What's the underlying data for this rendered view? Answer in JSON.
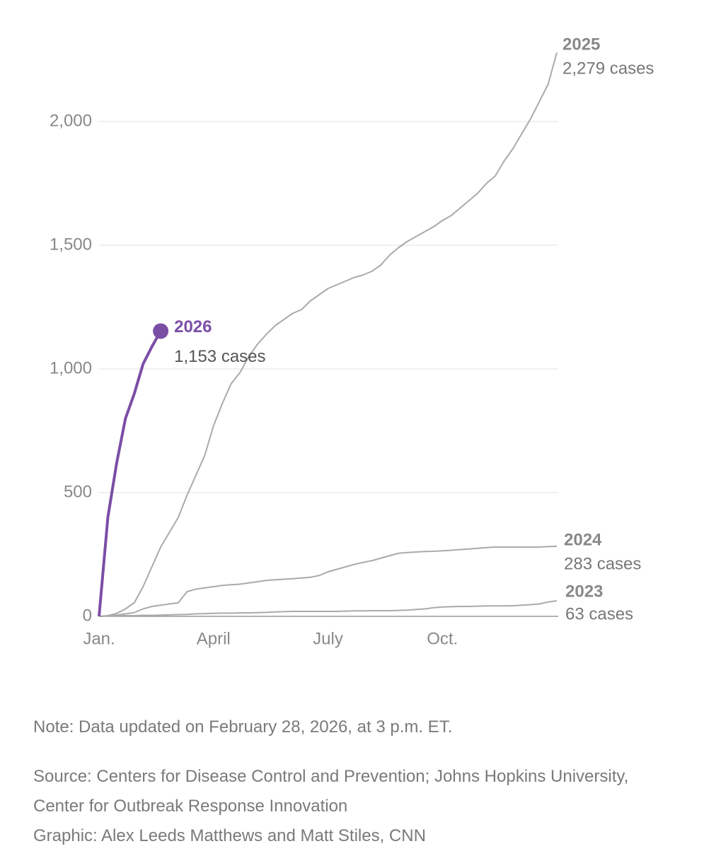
{
  "chart_data": {
    "type": "line",
    "x": [
      0,
      1,
      2,
      3,
      4,
      5,
      6,
      7,
      8,
      9,
      10,
      11,
      12,
      13,
      14,
      15,
      16,
      17,
      18,
      19,
      20,
      21,
      22,
      23,
      24,
      25,
      26,
      27,
      28,
      29,
      30,
      31,
      32,
      33,
      34,
      35,
      36,
      37,
      38,
      39,
      40,
      41,
      42,
      43,
      44,
      45,
      46,
      47,
      48,
      49,
      50,
      51,
      52
    ],
    "xlim": [
      0,
      52
    ],
    "xticks": [
      {
        "value": 0,
        "label": "Jan."
      },
      {
        "value": 13,
        "label": "April"
      },
      {
        "value": 26,
        "label": "July"
      },
      {
        "value": 39,
        "label": "Oct."
      }
    ],
    "ylim": [
      0,
      2300
    ],
    "yticks": [
      0,
      500,
      {
        "value": 1000,
        "label": "1,000"
      },
      {
        "value": 1500,
        "label": "1,500"
      },
      {
        "value": 2000,
        "label": "2,000"
      }
    ],
    "grid": true,
    "series": [
      {
        "name": "2023",
        "label": "63 cases",
        "color": "#aaaaaa",
        "values": [
          0,
          1,
          2,
          3,
          3,
          4,
          4,
          5,
          6,
          7,
          8,
          10,
          11,
          12,
          13,
          13,
          14,
          14,
          15,
          16,
          18,
          19,
          20,
          20,
          20,
          20,
          20,
          20,
          21,
          22,
          22,
          23,
          23,
          23,
          24,
          25,
          28,
          30,
          35,
          38,
          39,
          40,
          40,
          41,
          42,
          42,
          42,
          43,
          45,
          47,
          50,
          58,
          63
        ]
      },
      {
        "name": "2024",
        "label": "283 cases",
        "color": "#aaaaaa",
        "values": [
          0,
          2,
          5,
          10,
          15,
          30,
          40,
          45,
          50,
          55,
          100,
          110,
          115,
          120,
          125,
          128,
          130,
          135,
          140,
          145,
          148,
          150,
          152,
          155,
          158,
          165,
          180,
          190,
          200,
          210,
          218,
          225,
          235,
          245,
          255,
          258,
          260,
          262,
          263,
          265,
          267,
          270,
          272,
          275,
          278,
          280,
          280,
          280,
          280,
          280,
          280,
          282,
          283
        ]
      },
      {
        "name": "2025",
        "label": "2,279 cases",
        "color": "#aaaaaa",
        "values": [
          0,
          3,
          12,
          30,
          55,
          120,
          200,
          280,
          340,
          400,
          490,
          570,
          650,
          770,
          860,
          940,
          985,
          1050,
          1100,
          1140,
          1175,
          1200,
          1225,
          1240,
          1275,
          1300,
          1325,
          1340,
          1355,
          1370,
          1380,
          1395,
          1420,
          1460,
          1490,
          1515,
          1535,
          1555,
          1575,
          1600,
          1620,
          1650,
          1680,
          1710,
          1750,
          1780,
          1840,
          1890,
          1950,
          2010,
          2080,
          2150,
          2279
        ]
      },
      {
        "name": "2026",
        "label": "1,153 cases",
        "color": "#7b4ea6",
        "values": [
          0,
          400,
          620,
          800,
          900,
          1020,
          1090,
          1153,
          null,
          null,
          null,
          null,
          null,
          null,
          null,
          null,
          null,
          null,
          null,
          null,
          null,
          null,
          null,
          null,
          null,
          null,
          null,
          null,
          null,
          null,
          null,
          null,
          null,
          null,
          null,
          null,
          null,
          null,
          null,
          null,
          null,
          null,
          null,
          null,
          null,
          null,
          null,
          null,
          null,
          null,
          null,
          null,
          null
        ]
      }
    ]
  },
  "note": "Note: Data updated on February 28, 2026, at 3 p.m. ET.",
  "source": "Source: Centers for Disease Control and Prevention; Johns Hopkins University, Center for Outbreak Response Innovation",
  "credit": "Graphic: Alex Leeds Matthews and Matt Stiles, CNN"
}
